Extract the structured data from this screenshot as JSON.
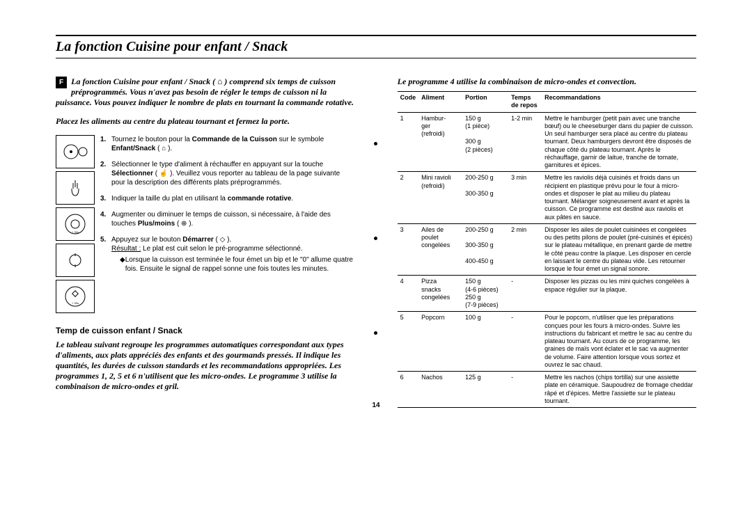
{
  "title": "La fonction Cuisine pour enfant / Snack",
  "fbox": "F",
  "intro": "La fonction Cuisine pour enfant / Snack ( ⌂ ) comprend six temps de cuisson préprogrammés. Vous n'avez pas besoin de régler le temps de cuisson ni la puissance.  Vous pouvez indiquer le nombre de plats en tournant la commande rotative.",
  "intro2": "Placez les aliments au centre du plateau tournant et fermez la porte.",
  "steps": [
    {
      "n": "1.",
      "text_a": "Tournez le bouton pour la ",
      "b1": "Commande de la Cuisson",
      "text_b": " sur le symbole ",
      "b2": "Enfant/Snack",
      "text_c": " ( ⌂ )."
    },
    {
      "n": "2.",
      "text_a": "Sélectionner le type d'aliment à réchauffer en appuyant sur la touche ",
      "b1": "Sélectionner",
      "text_b": " ( ☝ ). Veuillez vous reporter au tableau de la page suivante pour la description des différents plats préprogrammés."
    },
    {
      "n": "3.",
      "text_a": "Indiquer la taille du plat en utilisant la ",
      "b1": "commande rotative",
      "text_b": "."
    },
    {
      "n": "4.",
      "text_a": "Augmenter ou diminuer le temps de cuisson, si nécessaire, à l'aide des touches ",
      "b1": "Plus/moins",
      "text_b": " ( ⊕ )."
    },
    {
      "n": "5.",
      "text_a": "Appuyez sur le bouton ",
      "b1": "Démarrer",
      "text_b": " ( ◇ ).",
      "result_label": "Résultat :",
      "result_text": "Le plat est cuit selon le pré-programme sélectionné.",
      "bullets": [
        "Lorsque la cuisson est terminée le four émet un bip et le \"0\" allume quatre fois. Ensuite le signal de rappel sonne une fois toutes les minutes."
      ]
    }
  ],
  "subsection": "Temp de cuisson enfant / Snack",
  "left_bottom": "Le tableau suivant regroupe les programmes automatiques correspondant aux types d'aliments, aux plats appréciés des enfants et des gourmands pressés. Il indique les quantités, les durées de cuisson standards et les recommandations appropriées.  Les programmes 1, 2, 5 et 6 n'utilisent que les micro-ondes. Le programme 3 utilise la combinaison de micro-ondes et gril.",
  "right_top": "Le programme 4 utilise la combinaison de micro-ondes et convection.",
  "table": {
    "headers": [
      "Code",
      "Aliment",
      "Portion",
      "Temps de repos",
      "Recommandations"
    ],
    "rows": [
      {
        "code": "1",
        "aliment": "Hambur-\nger\n(refroidi)",
        "portion": "150 g\n(1 pièce)\n\n300 g\n(2 pièces)",
        "temps": "1-2 min",
        "reco": "Mettre le hamburger (petit pain avec une tranche bœuf) ou le cheeseburger dans du papier de cuisson. Un seul hamburger sera placé au centre du plateau tournant. Deux hamburgers devront être disposés de chaque côté du plateau tournant. Après le réchauffage, garnir de laitue, tranche de tomate, garnitures et épices."
      },
      {
        "code": "2",
        "aliment": "Mini ravioli\n(refroidi)",
        "portion": "200-250 g\n\n300-350 g",
        "temps": "3 min",
        "reco": "Mettre les raviolis déjà cuisinés et froids dans un récipient en plastique prévu pour le four à micro-ondes et disposer le plat au milieu du plateau tournant.  Mélanger soigneusement avant et après la cuisson. Ce programme est destiné aux raviolis et aux pâtes en sauce."
      },
      {
        "code": "3",
        "aliment": "Ailes de\npoulet\ncongelées",
        "portion": "200-250 g\n\n300-350 g\n\n400-450 g",
        "temps": "2 min",
        "reco": "Disposer les ailes de poulet cuisinées et congelées ou des petits pilons de poulet (pré-cuisinés et épicés) sur le plateau métallique, en prenant garde de mettre le côté peau contre la plaque.  Les disposer en cercle en laissant le centre du plateau vide. Les retourner lorsque le four émet un signal sonore."
      },
      {
        "code": "4",
        "aliment": "Pizza\nsnacks\ncongelées",
        "portion": "150 g\n(4-6 pièces)\n250 g\n(7-9 pièces)",
        "temps": "-",
        "reco": "Disposer les pizzas ou les mini quiches congelées à espace régulier sur la plaque."
      },
      {
        "code": "5",
        "aliment": "Popcorn",
        "portion": "100 g",
        "temps": "-",
        "reco": "Pour le popcorn, n'utiliser que les préparations conçues pour les fours à micro-ondes.  Suivre les instructions du fabricant et mettre le sac au centre du plateau tournant.  Au cours de ce programme, les graines de maïs vont éclater et le sac va augmenter de volume. Faire attention lorsque vous sortez et ouvrez le sac chaud."
      },
      {
        "code": "6",
        "aliment": "Nachos",
        "portion": "125 g",
        "temps": "-",
        "reco": "Mettre les nachos (chips tortilla) sur une assiette plate en céramique. Saupoudrez de fromage cheddar râpé et d'épices. Mettre l'assiette sur le plateau tournant."
      }
    ]
  },
  "page_number": "14"
}
